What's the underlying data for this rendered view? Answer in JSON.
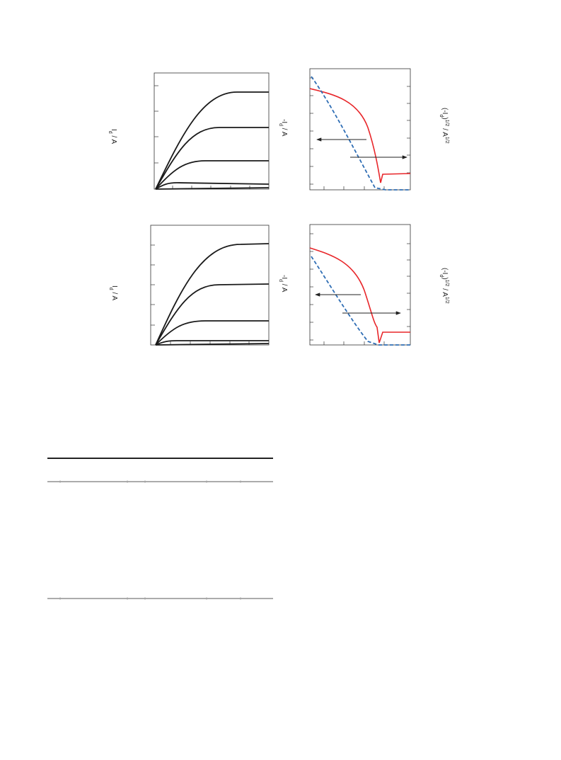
{
  "figures": [
    {
      "output_ylabel": {
        "main": "I",
        "sub": "d",
        "rest": " / A"
      },
      "transfer_ylabel": {
        "main": "-I",
        "sub": "d",
        "rest": " / A"
      },
      "sqrt_ylabel": {
        "main": "(-I",
        "sub": "d",
        "rest": ")",
        "sup": "1/2",
        "unit": " / A",
        "unit_sup": "1/2"
      }
    },
    {
      "output_ylabel": {
        "main": "I",
        "sub": "d",
        "rest": " / A"
      },
      "transfer_ylabel": {
        "main": "-I",
        "sub": "d",
        "rest": " / A"
      },
      "sqrt_ylabel": {
        "main": "(-I",
        "sub": "d",
        "rest": ")",
        "sup": "1/2",
        "unit": " / A",
        "unit_sup": "1/2"
      }
    }
  ]
}
